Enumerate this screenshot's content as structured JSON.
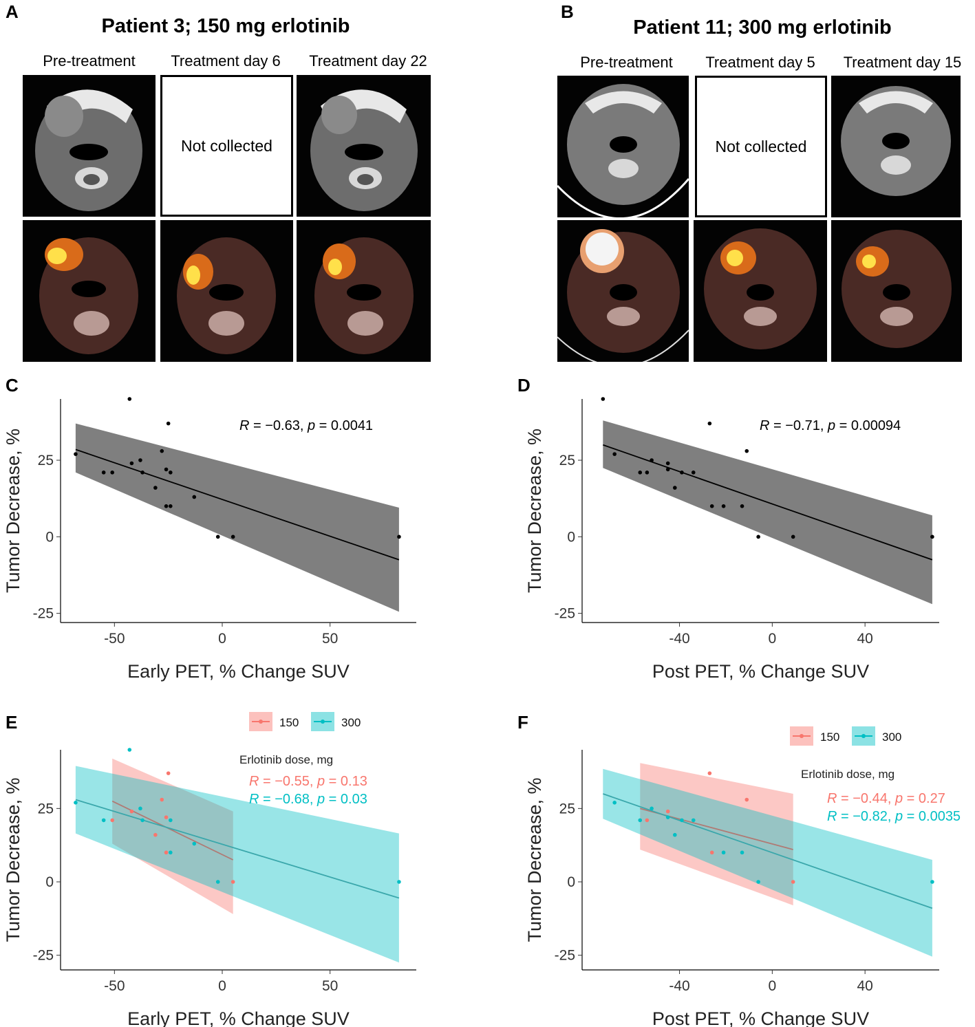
{
  "panels": {
    "A": {
      "letter": "A",
      "title": "Patient 3; 150 mg erlotinib",
      "columns": [
        "Pre-treatment",
        "Treatment day 6",
        "Treatment day 22"
      ],
      "not_collected": "Not collected"
    },
    "B": {
      "letter": "B",
      "title": "Patient 11; 300 mg erlotinib",
      "columns": [
        "Pre-treatment",
        "Treatment day 5",
        "Treatment day 15"
      ],
      "not_collected": "Not collected"
    }
  },
  "colors": {
    "group150": "#F8766D",
    "group300": "#00BFC4",
    "ribbon": "#7f7f7f",
    "point": "#000000"
  },
  "chart_data": [
    {
      "id": "C",
      "letter": "C",
      "type": "scatter",
      "xlabel": "Early PET, % Change SUV",
      "ylabel": "Tumor Decrease, %",
      "xlim": [
        -75,
        90
      ],
      "ylim": [
        -28,
        45
      ],
      "xticks": [
        -50,
        0,
        50
      ],
      "yticks": [
        -25,
        0,
        25
      ],
      "annotation": {
        "R": "-0.63",
        "p": "0.0041"
      },
      "points": [
        [
          -68,
          27
        ],
        [
          -55,
          21
        ],
        [
          -51,
          21
        ],
        [
          -43,
          45
        ],
        [
          -42,
          24
        ],
        [
          -38,
          25
        ],
        [
          -37,
          21
        ],
        [
          -31,
          16
        ],
        [
          -28,
          28
        ],
        [
          -26,
          22
        ],
        [
          -25,
          37
        ],
        [
          -26,
          10
        ],
        [
          -24,
          21
        ],
        [
          -24,
          10
        ],
        [
          -13,
          13
        ],
        [
          -2,
          0
        ],
        [
          5,
          0
        ],
        [
          82,
          0
        ]
      ],
      "fit": {
        "x": [
          -68,
          82
        ],
        "y": [
          28.5,
          -7.5
        ],
        "lower": [
          21,
          -24.5
        ],
        "upper": [
          37,
          9.5
        ]
      }
    },
    {
      "id": "D",
      "letter": "D",
      "type": "scatter",
      "xlabel": "Post PET, % Change SUV",
      "ylabel": "Tumor Decrease, %",
      "xlim": [
        -82,
        72
      ],
      "ylim": [
        -28,
        45
      ],
      "xticks": [
        -40,
        0,
        40
      ],
      "yticks": [
        -25,
        0,
        25
      ],
      "annotation": {
        "R": "-0.71",
        "p": "0.00094"
      },
      "points": [
        [
          -73,
          45
        ],
        [
          -68,
          27
        ],
        [
          -57,
          21
        ],
        [
          -54,
          21
        ],
        [
          -52,
          25
        ],
        [
          -45,
          24
        ],
        [
          -45,
          22
        ],
        [
          -42,
          16
        ],
        [
          -39,
          21
        ],
        [
          -34,
          21
        ],
        [
          -27,
          37
        ],
        [
          -26,
          10
        ],
        [
          -21,
          10
        ],
        [
          -13,
          10
        ],
        [
          -11,
          28
        ],
        [
          -6,
          0
        ],
        [
          9,
          0
        ],
        [
          69,
          0
        ]
      ],
      "fit": {
        "x": [
          -73,
          69
        ],
        "y": [
          30,
          -7.5
        ],
        "lower": [
          22.5,
          -22
        ],
        "upper": [
          38,
          7
        ]
      }
    },
    {
      "id": "E",
      "letter": "E",
      "type": "scatter",
      "xlabel": "Early PET, % Change SUV",
      "ylabel": "Tumor Decrease, %",
      "xlim": [
        -75,
        90
      ],
      "ylim": [
        -30,
        45
      ],
      "xticks": [
        -50,
        0,
        50
      ],
      "yticks": [
        -25,
        0,
        25
      ],
      "legend": {
        "title": "Erlotinib dose, mg",
        "entries": [
          "150",
          "300"
        ]
      },
      "annotations": [
        {
          "group": "150",
          "R": "-0.55",
          "p": "0.13"
        },
        {
          "group": "300",
          "R": "-0.68",
          "p": "0.03"
        }
      ],
      "series": [
        {
          "name": "150",
          "points": [
            [
              -51,
              21
            ],
            [
              -42,
              24
            ],
            [
              -31,
              16
            ],
            [
              -28,
              28
            ],
            [
              -26,
              22
            ],
            [
              -25,
              37
            ],
            [
              -26,
              10
            ],
            [
              5,
              0
            ]
          ],
          "fit": {
            "x": [
              -51,
              5
            ],
            "y": [
              27.5,
              7.5
            ],
            "lower": [
              13,
              -11
            ],
            "upper": [
              42,
              24
            ]
          }
        },
        {
          "name": "300",
          "points": [
            [
              -68,
              27
            ],
            [
              -55,
              21
            ],
            [
              -43,
              45
            ],
            [
              -38,
              25
            ],
            [
              -37,
              21
            ],
            [
              -24,
              21
            ],
            [
              -24,
              10
            ],
            [
              -13,
              13
            ],
            [
              -2,
              0
            ],
            [
              82,
              0
            ]
          ],
          "fit": {
            "x": [
              -68,
              82
            ],
            "y": [
              28,
              -5.5
            ],
            "lower": [
              16.5,
              -27.5
            ],
            "upper": [
              39.5,
              16.5
            ]
          }
        }
      ]
    },
    {
      "id": "F",
      "letter": "F",
      "type": "scatter",
      "xlabel": "Post PET, % Change SUV",
      "ylabel": "Tumor Decrease, %",
      "xlim": [
        -82,
        72
      ],
      "ylim": [
        -30,
        45
      ],
      "xticks": [
        -40,
        0,
        40
      ],
      "yticks": [
        -25,
        0,
        25
      ],
      "legend": {
        "title": "Erlotinib dose, mg",
        "entries": [
          "150",
          "300"
        ]
      },
      "annotations": [
        {
          "group": "150",
          "R": "-0.44",
          "p": "0.27"
        },
        {
          "group": "300",
          "R": "-0.82",
          "p": "0.0035"
        }
      ],
      "series": [
        {
          "name": "150",
          "points": [
            [
              -54,
              21
            ],
            [
              -45,
              24
            ],
            [
              -27,
              37
            ],
            [
              -11,
              28
            ],
            [
              -26,
              10
            ],
            [
              9,
              0
            ]
          ],
          "fit": {
            "x": [
              -57,
              9
            ],
            "y": [
              25,
              11
            ],
            "lower": [
              11,
              -8
            ],
            "upper": [
              40.5,
              30
            ]
          }
        },
        {
          "name": "300",
          "points": [
            [
              -68,
              27
            ],
            [
              -57,
              21
            ],
            [
              -52,
              25
            ],
            [
              -45,
              22
            ],
            [
              -42,
              16
            ],
            [
              -39,
              21
            ],
            [
              -34,
              21
            ],
            [
              -21,
              10
            ],
            [
              -13,
              10
            ],
            [
              -6,
              0
            ],
            [
              69,
              0
            ]
          ],
          "fit": {
            "x": [
              -73,
              69
            ],
            "y": [
              30,
              -9
            ],
            "lower": [
              21.5,
              -25.5
            ],
            "upper": [
              38.5,
              7.5
            ]
          }
        }
      ]
    }
  ]
}
